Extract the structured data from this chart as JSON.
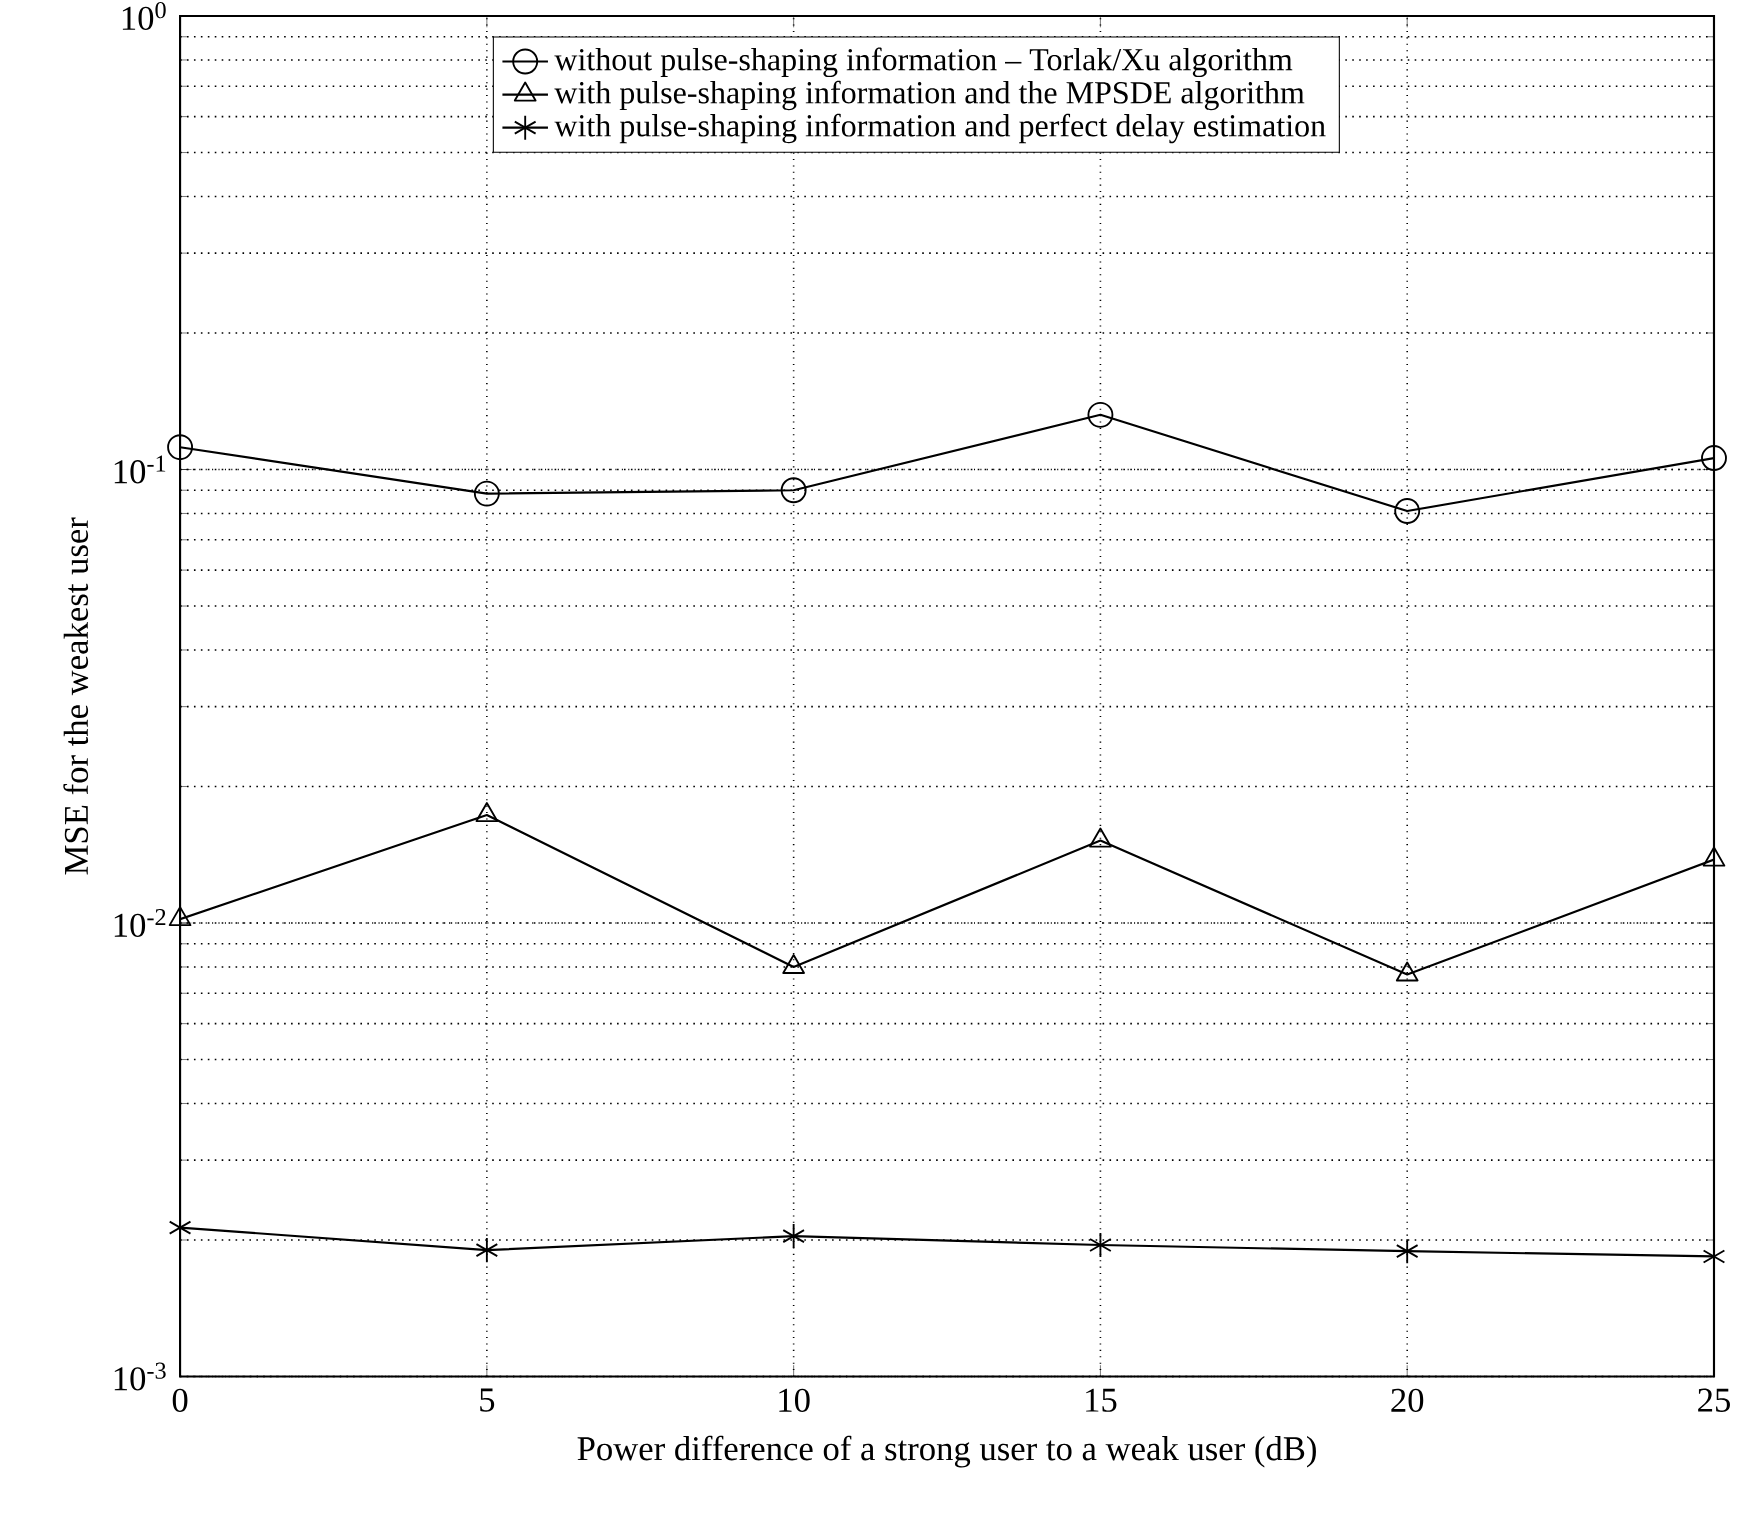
{
  "chart_data": {
    "type": "line",
    "xlabel": "Power difference of a strong user to a weak user (dB)",
    "ylabel": "MSE for the weakest user",
    "x": [
      0,
      5,
      10,
      15,
      20,
      25
    ],
    "series": [
      {
        "name": "without pulse-shaping information – Torlak/Xu algorithm",
        "color": "#000000",
        "marker": "circle",
        "values": [
          0.112,
          0.0885,
          0.09,
          0.132,
          0.081,
          0.106
        ]
      },
      {
        "name": "with pulse-shaping information and the MPSDE algorithm",
        "color": "#000000",
        "marker": "triangle",
        "values": [
          0.0102,
          0.0173,
          0.008,
          0.0152,
          0.0077,
          0.0138
        ]
      },
      {
        "name": "with pulse-shaping information and perfect delay estimation",
        "color": "#000000",
        "marker": "cross",
        "values": [
          0.00213,
          0.0019,
          0.00204,
          0.00195,
          0.00189,
          0.00184
        ]
      }
    ],
    "xlim": [
      0,
      25
    ],
    "xticks": [
      0,
      5,
      10,
      15,
      20,
      25
    ],
    "ylim": [
      0.001,
      1
    ],
    "yticks": [
      {
        "value": 0.001,
        "label": "10$^{-3}$"
      },
      {
        "value": 0.01,
        "label": "10$^{-2}$"
      },
      {
        "value": 0.1,
        "label": "10$^{-1}$"
      },
      {
        "value": 1,
        "label": "10$^{0}$"
      }
    ],
    "log": "y",
    "grid": true,
    "legend": "top",
    "line_style": "solid"
  }
}
